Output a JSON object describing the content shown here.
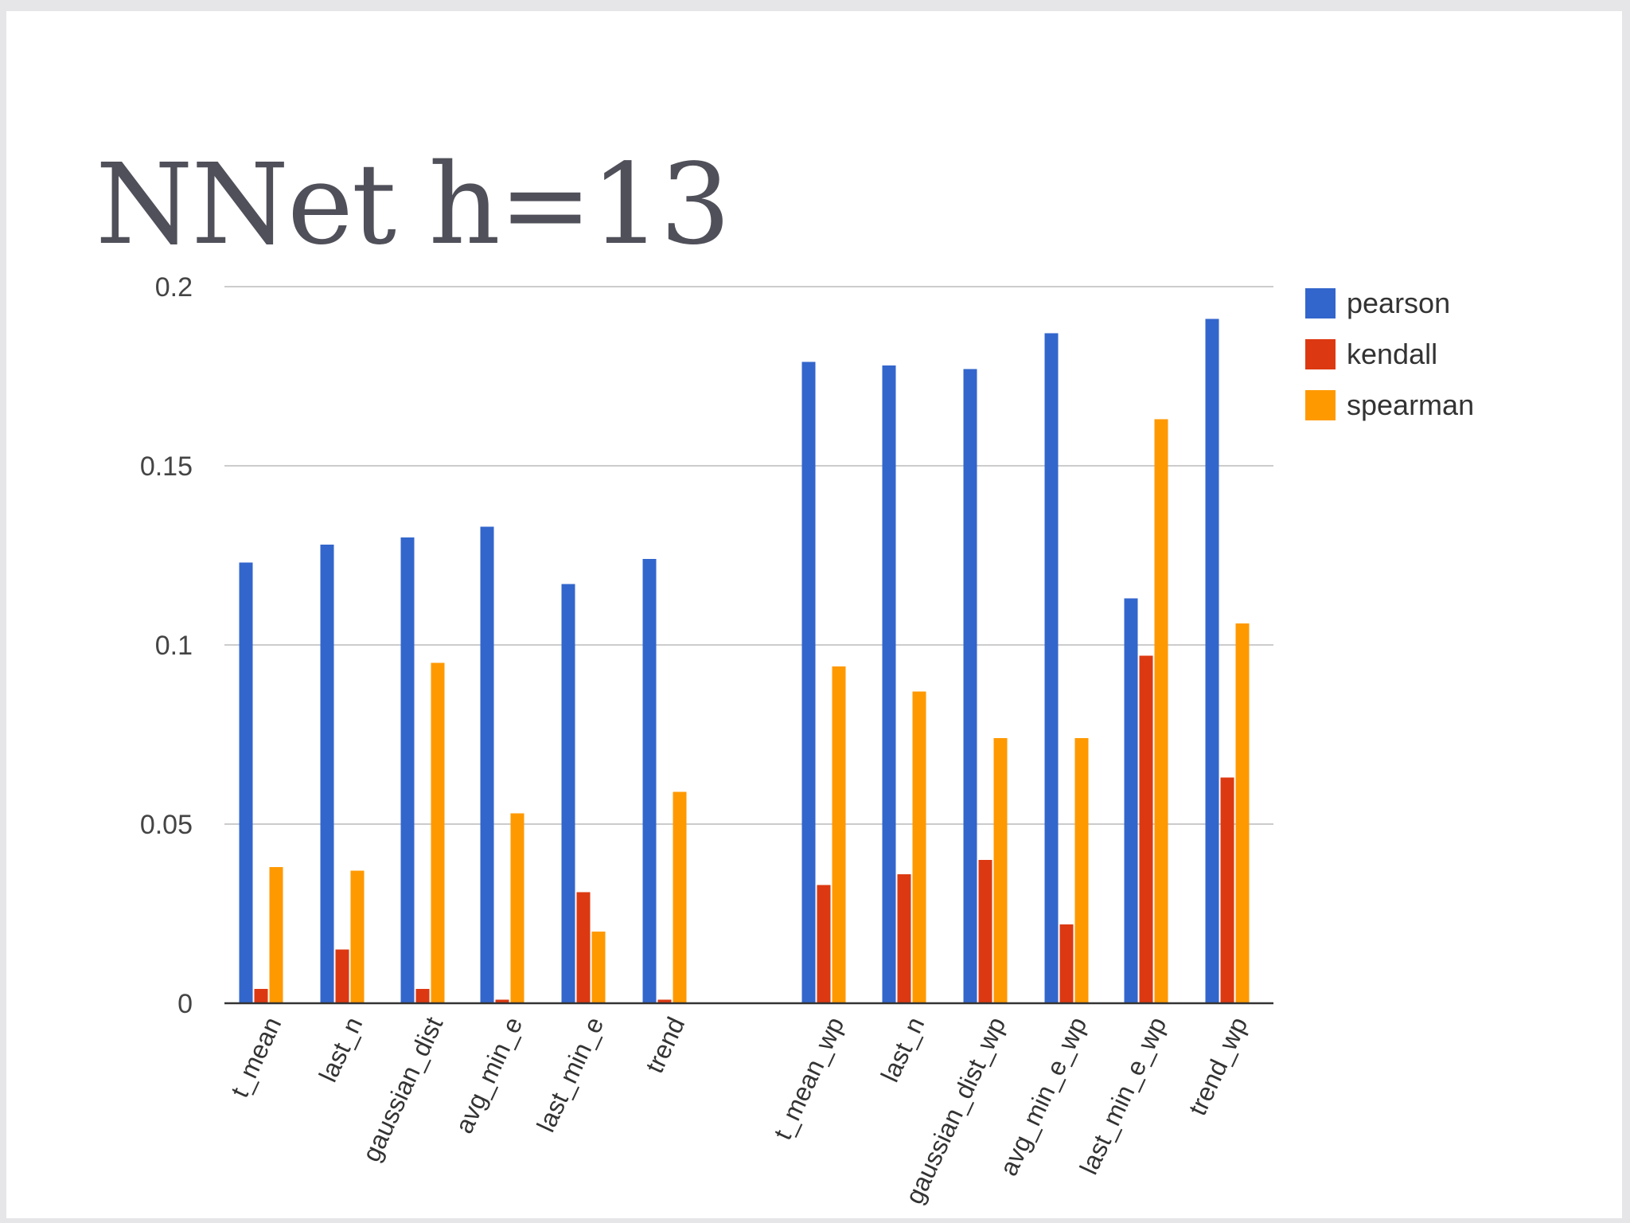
{
  "slide": {
    "title": "NNet h=13"
  },
  "colors": {
    "background": "#ffffff",
    "border": "#e6e6e8",
    "title": "#50505a",
    "grid": "#cccccc",
    "axis": "#333333"
  },
  "chart_data": {
    "type": "bar",
    "title": "",
    "xlabel": "",
    "ylabel": "",
    "ylim": [
      0,
      0.2
    ],
    "yticks": [
      "0",
      "0.05",
      "0.1",
      "0.15",
      "0.2"
    ],
    "grid": true,
    "legend_position": "top-right",
    "categories": [
      "t_mean",
      "last_n",
      "gaussian_dist",
      "avg_min_e",
      "last_min_e",
      "trend",
      "t_mean_wp",
      "last_n",
      "gaussian_dist_wp",
      "avg_min_e_wp",
      "last_min_e_wp",
      "trend_wp"
    ],
    "series": [
      {
        "name": "pearson",
        "color": "#3366cc",
        "values": [
          0.123,
          0.128,
          0.13,
          0.133,
          0.117,
          0.124,
          0.179,
          0.178,
          0.177,
          0.187,
          0.113,
          0.191
        ]
      },
      {
        "name": "kendall",
        "color": "#dc3912",
        "values": [
          0.004,
          0.015,
          0.004,
          0.001,
          0.031,
          0.001,
          0.033,
          0.036,
          0.04,
          0.022,
          0.097,
          0.063
        ]
      },
      {
        "name": "spearman",
        "color": "#ff9900",
        "values": [
          0.038,
          0.037,
          0.095,
          0.053,
          0.02,
          0.059,
          0.094,
          0.087,
          0.074,
          0.074,
          0.163,
          0.106
        ]
      }
    ]
  }
}
